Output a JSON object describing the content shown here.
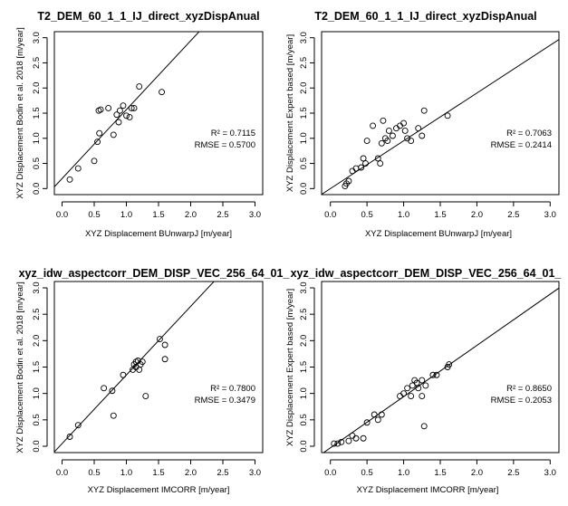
{
  "chart_data": [
    {
      "type": "scatter",
      "title": "T2_DEM_60_1_1_IJ_direct_xyzDispAnual",
      "xlabel": "XYZ Displacement BUnwarpJ [m/year]",
      "ylabel": "XYZ Displacement Bodin et al. 2018 [m/year]",
      "xlim": [
        0,
        3.0
      ],
      "ylim": [
        0,
        3.0
      ],
      "xticks": [
        "0.0",
        "0.5",
        "1.0",
        "1.5",
        "2.0",
        "2.5",
        "3.0"
      ],
      "yticks": [
        "0.0",
        "0.5",
        "1.0",
        "1.5",
        "2.0",
        "2.5",
        "3.0"
      ],
      "annotation": [
        "R² = 0.7115",
        "RMSE = 0.5700"
      ],
      "fit_line": {
        "intercept": 0.2,
        "slope": 1.37
      },
      "points": [
        [
          0.12,
          0.18
        ],
        [
          0.25,
          0.4
        ],
        [
          0.5,
          0.55
        ],
        [
          0.55,
          0.93
        ],
        [
          0.58,
          1.1
        ],
        [
          0.57,
          1.55
        ],
        [
          0.6,
          1.57
        ],
        [
          0.72,
          1.6
        ],
        [
          0.8,
          1.07
        ],
        [
          0.85,
          1.47
        ],
        [
          0.88,
          1.32
        ],
        [
          0.9,
          1.55
        ],
        [
          0.95,
          1.65
        ],
        [
          1.0,
          1.45
        ],
        [
          1.05,
          1.42
        ],
        [
          1.08,
          1.6
        ],
        [
          1.12,
          1.6
        ],
        [
          1.2,
          2.03
        ],
        [
          1.55,
          1.92
        ]
      ]
    },
    {
      "type": "scatter",
      "title": "T2_DEM_60_1_1_IJ_direct_xyzDispAnual",
      "xlabel": "XYZ Displacement BUnwarpJ [m/year]",
      "ylabel": "XYZ Displacement Expert based [m/year]",
      "xlim": [
        0,
        3.0
      ],
      "ylim": [
        0,
        3.0
      ],
      "xticks": [
        "0.0",
        "0.5",
        "1.0",
        "1.5",
        "2.0",
        "2.5",
        "3.0"
      ],
      "yticks": [
        "0.0",
        "0.5",
        "1.0",
        "1.5",
        "2.0",
        "2.5",
        "3.0"
      ],
      "annotation": [
        "R² = 0.7063",
        "RMSE = 0.2414"
      ],
      "fit_line": {
        "intercept": 0.0,
        "slope": 0.95
      },
      "points": [
        [
          0.2,
          0.05
        ],
        [
          0.22,
          0.1
        ],
        [
          0.25,
          0.15
        ],
        [
          0.3,
          0.35
        ],
        [
          0.35,
          0.4
        ],
        [
          0.42,
          0.42
        ],
        [
          0.45,
          0.6
        ],
        [
          0.48,
          0.5
        ],
        [
          0.5,
          0.95
        ],
        [
          0.58,
          1.25
        ],
        [
          0.65,
          0.6
        ],
        [
          0.68,
          0.5
        ],
        [
          0.7,
          0.9
        ],
        [
          0.72,
          1.35
        ],
        [
          0.75,
          1.0
        ],
        [
          0.78,
          0.95
        ],
        [
          0.8,
          1.15
        ],
        [
          0.85,
          1.05
        ],
        [
          0.9,
          1.2
        ],
        [
          0.95,
          1.25
        ],
        [
          1.0,
          1.3
        ],
        [
          1.02,
          1.15
        ],
        [
          1.05,
          1.0
        ],
        [
          1.1,
          0.95
        ],
        [
          1.2,
          1.2
        ],
        [
          1.25,
          1.05
        ],
        [
          1.28,
          1.55
        ],
        [
          1.6,
          1.45
        ]
      ]
    },
    {
      "type": "scatter",
      "title": "xyz_idw_aspectcorr_DEM_DISP_VEC_256_64_01_",
      "xlabel": "XYZ Displacement IMCORR [m/year]",
      "ylabel": "XYZ Displacement Bodin et al. 2018 [m/year]",
      "xlim": [
        0,
        3.0
      ],
      "ylim": [
        0,
        3.0
      ],
      "xticks": [
        "0.0",
        "0.5",
        "1.0",
        "1.5",
        "2.0",
        "2.5",
        "3.0"
      ],
      "yticks": [
        "0.0",
        "0.5",
        "1.0",
        "1.5",
        "2.0",
        "2.5",
        "3.0"
      ],
      "annotation": [
        "R² = 0.7800",
        "RMSE = 0.3479"
      ],
      "fit_line": {
        "intercept": 0.05,
        "slope": 1.3
      },
      "points": [
        [
          0.12,
          0.18
        ],
        [
          0.25,
          0.4
        ],
        [
          0.65,
          1.1
        ],
        [
          0.78,
          1.05
        ],
        [
          0.8,
          0.58
        ],
        [
          0.95,
          1.35
        ],
        [
          1.1,
          1.45
        ],
        [
          1.12,
          1.55
        ],
        [
          1.15,
          1.6
        ],
        [
          1.15,
          1.5
        ],
        [
          1.18,
          1.62
        ],
        [
          1.2,
          1.45
        ],
        [
          1.22,
          1.55
        ],
        [
          1.25,
          1.6
        ],
        [
          1.3,
          0.95
        ],
        [
          1.52,
          2.03
        ],
        [
          1.6,
          1.92
        ],
        [
          1.6,
          1.65
        ]
      ]
    },
    {
      "type": "scatter",
      "title": "xyz_idw_aspectcorr_DEM_DISP_VEC_256_64_01_",
      "xlabel": "XYZ Displacement IMCORR [m/year]",
      "ylabel": "XYZ Displacement Expert based [m/year]",
      "xlim": [
        0,
        3.0
      ],
      "ylim": [
        0,
        3.0
      ],
      "xticks": [
        "0.0",
        "0.5",
        "1.0",
        "1.5",
        "2.0",
        "2.5",
        "3.0"
      ],
      "yticks": [
        "0.0",
        "0.5",
        "1.0",
        "1.5",
        "2.0",
        "2.5",
        "3.0"
      ],
      "annotation": [
        "R² = 0.8650",
        "RMSE = 0.2053"
      ],
      "fit_line": {
        "intercept": -0.03,
        "slope": 0.97
      },
      "points": [
        [
          0.05,
          0.05
        ],
        [
          0.1,
          0.05
        ],
        [
          0.15,
          0.08
        ],
        [
          0.25,
          0.1
        ],
        [
          0.3,
          0.2
        ],
        [
          0.35,
          0.15
        ],
        [
          0.45,
          0.15
        ],
        [
          0.5,
          0.45
        ],
        [
          0.6,
          0.6
        ],
        [
          0.65,
          0.5
        ],
        [
          0.7,
          0.6
        ],
        [
          0.95,
          0.95
        ],
        [
          1.0,
          1.0
        ],
        [
          1.05,
          1.1
        ],
        [
          1.1,
          0.95
        ],
        [
          1.12,
          1.15
        ],
        [
          1.15,
          1.25
        ],
        [
          1.18,
          1.2
        ],
        [
          1.2,
          1.1
        ],
        [
          1.25,
          1.25
        ],
        [
          1.25,
          0.95
        ],
        [
          1.3,
          1.15
        ],
        [
          1.28,
          0.38
        ],
        [
          1.4,
          1.35
        ],
        [
          1.45,
          1.35
        ],
        [
          1.6,
          1.5
        ],
        [
          1.62,
          1.55
        ]
      ]
    }
  ]
}
